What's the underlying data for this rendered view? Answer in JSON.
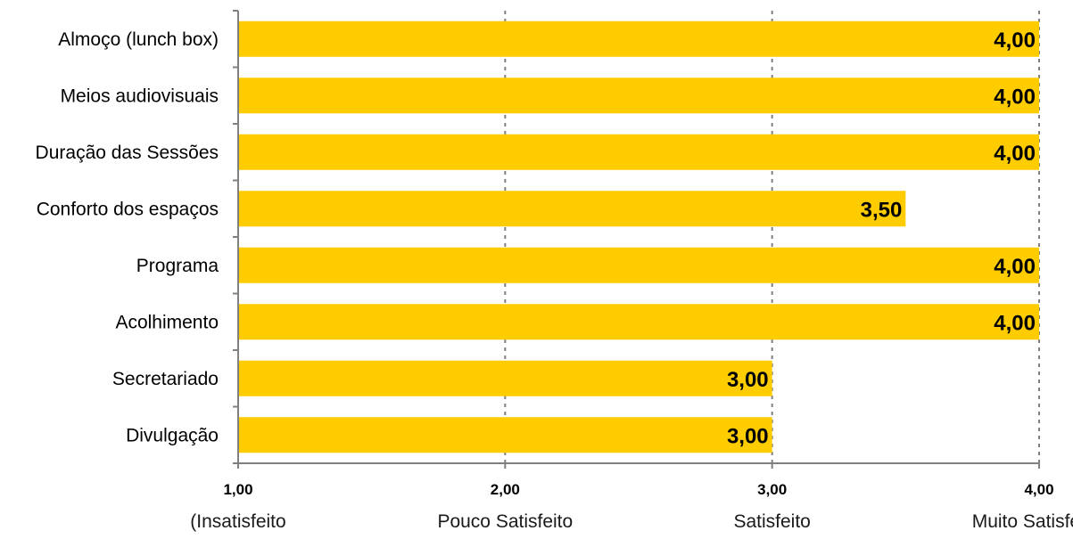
{
  "chart_data": {
    "type": "bar",
    "orientation": "horizontal",
    "categories": [
      "Almoço (lunch box)",
      "Meios audiovisuais",
      "Duração das Sessões",
      "Conforto dos espaços",
      "Programa",
      "Acolhimento",
      "Secretariado",
      "Divulgação"
    ],
    "values": [
      4.0,
      4.0,
      4.0,
      3.5,
      4.0,
      4.0,
      3.0,
      3.0
    ],
    "value_labels": [
      "4,00",
      "4,00",
      "4,00",
      "3,50",
      "4,00",
      "4,00",
      "3,00",
      "3,00"
    ],
    "xlim": [
      1,
      4
    ],
    "x_ticks": [
      1,
      2,
      3,
      4
    ],
    "x_tick_labels": [
      "1,00",
      "2,00",
      "3,00",
      "4,00"
    ],
    "x_tick_descriptions": [
      "(Insatisfeito",
      "Pouco Satisfeito",
      "Satisfeito",
      "Muito Satisfeito)"
    ],
    "grid": "vertical dashed",
    "legend": "none",
    "colors": {
      "bar": "#FFCC00",
      "label_bg": "#FFCC00",
      "grid": "#808080",
      "axis": "#808080"
    }
  }
}
